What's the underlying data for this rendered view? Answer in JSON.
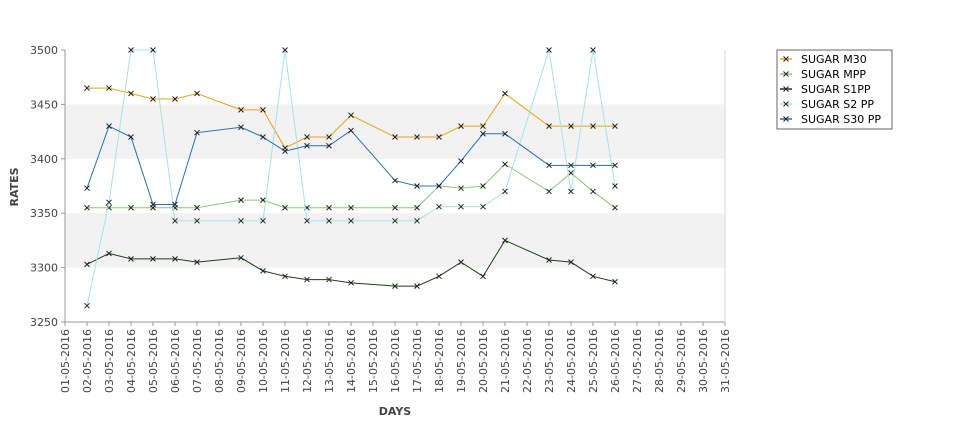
{
  "chart_data": {
    "type": "line",
    "title": "",
    "xlabel": "DAYS",
    "ylabel": "RATES",
    "ylim": [
      3250,
      3500
    ],
    "yticks": [
      3250,
      3300,
      3350,
      3400,
      3450,
      3500
    ],
    "grid": "alternating horizontal bands",
    "legend_position": "top-right",
    "x": [
      "01-05-2016",
      "02-05-2016",
      "03-05-2016",
      "04-05-2016",
      "05-05-2016",
      "06-05-2016",
      "07-05-2016",
      "08-05-2016",
      "09-05-2016",
      "10-05-2016",
      "11-05-2016",
      "12-05-2016",
      "13-05-2016",
      "14-05-2016",
      "15-05-2016",
      "16-05-2016",
      "17-05-2016",
      "18-05-2016",
      "19-05-2016",
      "20-05-2016",
      "21-05-2016",
      "22-05-2016",
      "23-05-2016",
      "24-05-2016",
      "25-05-2016",
      "26-05-2016",
      "27-05-2016",
      "28-05-2016",
      "29-05-2016",
      "30-05-2016",
      "31-05-2016"
    ],
    "series": [
      {
        "name": "SUGAR M30",
        "color": "#e8a317",
        "points": [
          [
            "02-05-2016",
            3465
          ],
          [
            "03-05-2016",
            3465
          ],
          [
            "04-05-2016",
            3460
          ],
          [
            "05-05-2016",
            3455
          ],
          [
            "06-05-2016",
            3455
          ],
          [
            "07-05-2016",
            3460
          ],
          [
            "09-05-2016",
            3445
          ],
          [
            "10-05-2016",
            3445
          ],
          [
            "11-05-2016",
            3410
          ],
          [
            "12-05-2016",
            3420
          ],
          [
            "13-05-2016",
            3420
          ],
          [
            "14-05-2016",
            3440
          ],
          [
            "16-05-2016",
            3420
          ],
          [
            "17-05-2016",
            3420
          ],
          [
            "18-05-2016",
            3420
          ],
          [
            "19-05-2016",
            3430
          ],
          [
            "20-05-2016",
            3430
          ],
          [
            "21-05-2016",
            3460
          ],
          [
            "23-05-2016",
            3430
          ],
          [
            "24-05-2016",
            3430
          ],
          [
            "25-05-2016",
            3430
          ],
          [
            "26-05-2016",
            3430
          ]
        ]
      },
      {
        "name": "SUGAR MPP",
        "color": "#8cc878",
        "points": [
          [
            "02-05-2016",
            3355
          ],
          [
            "03-05-2016",
            3355
          ],
          [
            "04-05-2016",
            3355
          ],
          [
            "05-05-2016",
            3355
          ],
          [
            "06-05-2016",
            3355
          ],
          [
            "07-05-2016",
            3355
          ],
          [
            "09-05-2016",
            3362
          ],
          [
            "10-05-2016",
            3362
          ],
          [
            "11-05-2016",
            3355
          ],
          [
            "12-05-2016",
            3355
          ],
          [
            "13-05-2016",
            3355
          ],
          [
            "14-05-2016",
            3355
          ],
          [
            "16-05-2016",
            3355
          ],
          [
            "17-05-2016",
            3355
          ],
          [
            "18-05-2016",
            3375
          ],
          [
            "19-05-2016",
            3373
          ],
          [
            "20-05-2016",
            3375
          ],
          [
            "21-05-2016",
            3395
          ],
          [
            "23-05-2016",
            3370
          ],
          [
            "24-05-2016",
            3387
          ],
          [
            "25-05-2016",
            3370
          ],
          [
            "26-05-2016",
            3355
          ]
        ]
      },
      {
        "name": "SUGAR S1PP",
        "color": "#1e3d1e",
        "points": [
          [
            "02-05-2016",
            3303
          ],
          [
            "03-05-2016",
            3313
          ],
          [
            "04-05-2016",
            3308
          ],
          [
            "05-05-2016",
            3308
          ],
          [
            "06-05-2016",
            3308
          ],
          [
            "07-05-2016",
            3305
          ],
          [
            "09-05-2016",
            3309
          ],
          [
            "10-05-2016",
            3297
          ],
          [
            "11-05-2016",
            3292
          ],
          [
            "12-05-2016",
            3289
          ],
          [
            "13-05-2016",
            3289
          ],
          [
            "14-05-2016",
            3286
          ],
          [
            "16-05-2016",
            3283
          ],
          [
            "17-05-2016",
            3283
          ],
          [
            "18-05-2016",
            3292
          ],
          [
            "19-05-2016",
            3305
          ],
          [
            "20-05-2016",
            3292
          ],
          [
            "21-05-2016",
            3325
          ],
          [
            "23-05-2016",
            3307
          ],
          [
            "24-05-2016",
            3305
          ],
          [
            "25-05-2016",
            3292
          ],
          [
            "26-05-2016",
            3287
          ]
        ]
      },
      {
        "name": "SUGAR S2 PP",
        "color": "#a8e4dc",
        "points": [
          [
            "02-05-2016",
            3265
          ],
          [
            "03-05-2016",
            3360
          ],
          [
            "04-05-2016",
            3500
          ],
          [
            "05-05-2016",
            3500
          ],
          [
            "06-05-2016",
            3343
          ],
          [
            "07-05-2016",
            3343
          ],
          [
            "09-05-2016",
            3343
          ],
          [
            "10-05-2016",
            3343
          ],
          [
            "11-05-2016",
            3500
          ],
          [
            "12-05-2016",
            3343
          ],
          [
            "13-05-2016",
            3343
          ],
          [
            "14-05-2016",
            3343
          ],
          [
            "16-05-2016",
            3343
          ],
          [
            "17-05-2016",
            3343
          ],
          [
            "18-05-2016",
            3356
          ],
          [
            "19-05-2016",
            3356
          ],
          [
            "20-05-2016",
            3356
          ],
          [
            "21-05-2016",
            3370
          ],
          [
            "23-05-2016",
            3500
          ],
          [
            "24-05-2016",
            3370
          ],
          [
            "25-05-2016",
            3500
          ],
          [
            "26-05-2016",
            3375
          ]
        ]
      },
      {
        "name": "SUGAR S30 PP",
        "color": "#2a6fb8",
        "points": [
          [
            "02-05-2016",
            3373
          ],
          [
            "03-05-2016",
            3430
          ],
          [
            "04-05-2016",
            3420
          ],
          [
            "05-05-2016",
            3358
          ],
          [
            "06-05-2016",
            3358
          ],
          [
            "07-05-2016",
            3424
          ],
          [
            "09-05-2016",
            3429
          ],
          [
            "10-05-2016",
            3420
          ],
          [
            "11-05-2016",
            3407
          ],
          [
            "12-05-2016",
            3412
          ],
          [
            "13-05-2016",
            3412
          ],
          [
            "14-05-2016",
            3426
          ],
          [
            "16-05-2016",
            3380
          ],
          [
            "17-05-2016",
            3375
          ],
          [
            "18-05-2016",
            3375
          ],
          [
            "19-05-2016",
            3398
          ],
          [
            "20-05-2016",
            3423
          ],
          [
            "21-05-2016",
            3423
          ],
          [
            "23-05-2016",
            3394
          ],
          [
            "24-05-2016",
            3394
          ],
          [
            "25-05-2016",
            3394
          ],
          [
            "26-05-2016",
            3394
          ]
        ]
      }
    ]
  }
}
